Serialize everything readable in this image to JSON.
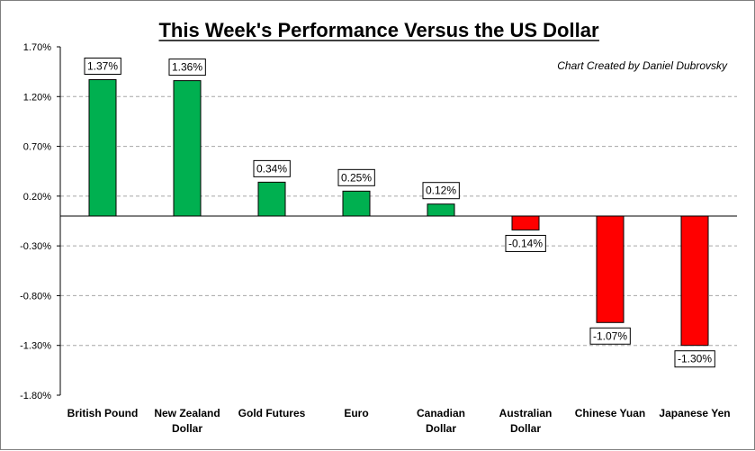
{
  "chart_data": {
    "type": "bar",
    "title": "This Week's Performance Versus the US Dollar",
    "annotation": "Chart Created by Daniel Dubrovsky",
    "categories": [
      [
        "British Pound"
      ],
      [
        "New Zealand",
        "Dollar"
      ],
      [
        "Gold Futures"
      ],
      [
        "Euro"
      ],
      [
        "Canadian",
        "Dollar"
      ],
      [
        "Australian",
        "Dollar"
      ],
      [
        "Chinese Yuan"
      ],
      [
        "Japanese Yen"
      ]
    ],
    "values": [
      1.37,
      1.36,
      0.34,
      0.25,
      0.12,
      -0.14,
      -1.07,
      -1.3
    ],
    "data_labels": [
      "1.37%",
      "1.36%",
      "0.34%",
      "0.25%",
      "0.12%",
      "-0.14%",
      "-1.07%",
      "-1.30%"
    ],
    "y_ticks": [
      1.7,
      1.2,
      0.7,
      0.2,
      -0.3,
      -0.8,
      -1.3,
      -1.8
    ],
    "y_tick_labels": [
      "1.70%",
      "1.20%",
      "0.70%",
      "0.20%",
      "-0.30%",
      "-0.80%",
      "-1.30%",
      "-1.80%"
    ],
    "ylim": [
      -1.8,
      1.7
    ],
    "grid": "horizontal dashed",
    "colors": {
      "positive": "#00b050",
      "negative": "#ff0000",
      "grid": "#a6a6a6",
      "axis": "#000000"
    }
  }
}
